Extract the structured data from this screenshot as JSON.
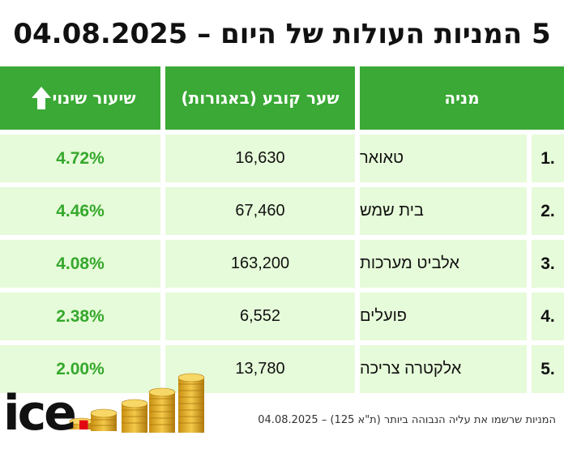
{
  "title": "5 המניות העולות של היום – 04.08.2025",
  "headers": {
    "stock": "מניה",
    "price": "שער קובע (באגורות)",
    "change": "שיעור שינוי"
  },
  "rows": [
    {
      "rank": "1.",
      "name": "טאואר",
      "price": "16,630",
      "change": "4.72%"
    },
    {
      "rank": "2.",
      "name": "בית שמש",
      "price": "67,460",
      "change": "4.46%"
    },
    {
      "rank": "3.",
      "name": "אלביט מערכות",
      "price": "163,200",
      "change": "4.08%"
    },
    {
      "rank": "4.",
      "name": "פועלים",
      "price": "6,552",
      "change": "2.38%"
    },
    {
      "rank": "5.",
      "name": "אלקטרה צריכה",
      "price": "13,780",
      "change": "2.00%"
    }
  ],
  "footer_note": "המניות שרשמו את עליה הנבוהה ביותר (ת\"א 125) – 04.08.2025",
  "logo": {
    "text": "ice",
    "dot": "."
  },
  "colors": {
    "header_green": "#3aa935",
    "row_bg": "#e6fbd9",
    "positive": "#35a82c",
    "logo_dot": "#e30613"
  },
  "icons": {
    "header_change_icon": "arrow-up-icon",
    "decoration": "coin-stacks"
  }
}
